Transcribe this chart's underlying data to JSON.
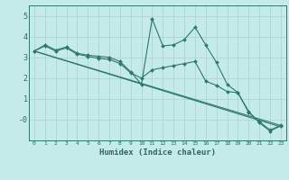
{
  "xlabel": "Humidex (Indice chaleur)",
  "ylabel": "",
  "bg_color": "#c5eaea",
  "grid_color": "#afd4d4",
  "line_color": "#2a7a6a",
  "xlim": [
    -0.5,
    23.5
  ],
  "ylim": [
    -1.0,
    5.5
  ],
  "yticks": [
    0,
    1,
    2,
    3,
    4,
    5
  ],
  "ytick_labels": [
    "-0",
    "1",
    "2",
    "3",
    "4",
    "5"
  ],
  "xticks": [
    0,
    1,
    2,
    3,
    4,
    5,
    6,
    7,
    8,
    9,
    10,
    11,
    12,
    13,
    14,
    15,
    16,
    17,
    18,
    19,
    20,
    21,
    22,
    23
  ],
  "lines": [
    {
      "x": [
        0,
        1,
        2,
        3,
        4,
        5,
        6,
        7,
        8,
        9,
        10,
        11,
        12,
        13,
        14,
        15,
        16,
        17,
        18,
        19,
        20,
        21,
        22,
        23
      ],
      "y": [
        3.3,
        3.6,
        3.35,
        3.5,
        3.2,
        3.1,
        3.05,
        3.0,
        2.8,
        2.3,
        1.7,
        4.85,
        3.55,
        3.6,
        3.85,
        4.45,
        3.6,
        2.75,
        1.7,
        1.3,
        0.4,
        -0.15,
        -0.55,
        -0.3
      ]
    },
    {
      "x": [
        0,
        1,
        2,
        3,
        4,
        5,
        6,
        7,
        8,
        9,
        10,
        11,
        12,
        13,
        14,
        15,
        16,
        17,
        18,
        19,
        20,
        21,
        22,
        23
      ],
      "y": [
        3.3,
        3.55,
        3.3,
        3.45,
        3.15,
        3.05,
        2.95,
        2.9,
        2.7,
        2.25,
        2.0,
        2.4,
        2.5,
        2.6,
        2.7,
        2.8,
        1.85,
        1.65,
        1.35,
        1.3,
        0.35,
        -0.1,
        -0.5,
        -0.28
      ]
    },
    {
      "x": [
        0,
        23
      ],
      "y": [
        3.3,
        -0.28
      ]
    },
    {
      "x": [
        0,
        23
      ],
      "y": [
        3.3,
        -0.35
      ]
    }
  ]
}
